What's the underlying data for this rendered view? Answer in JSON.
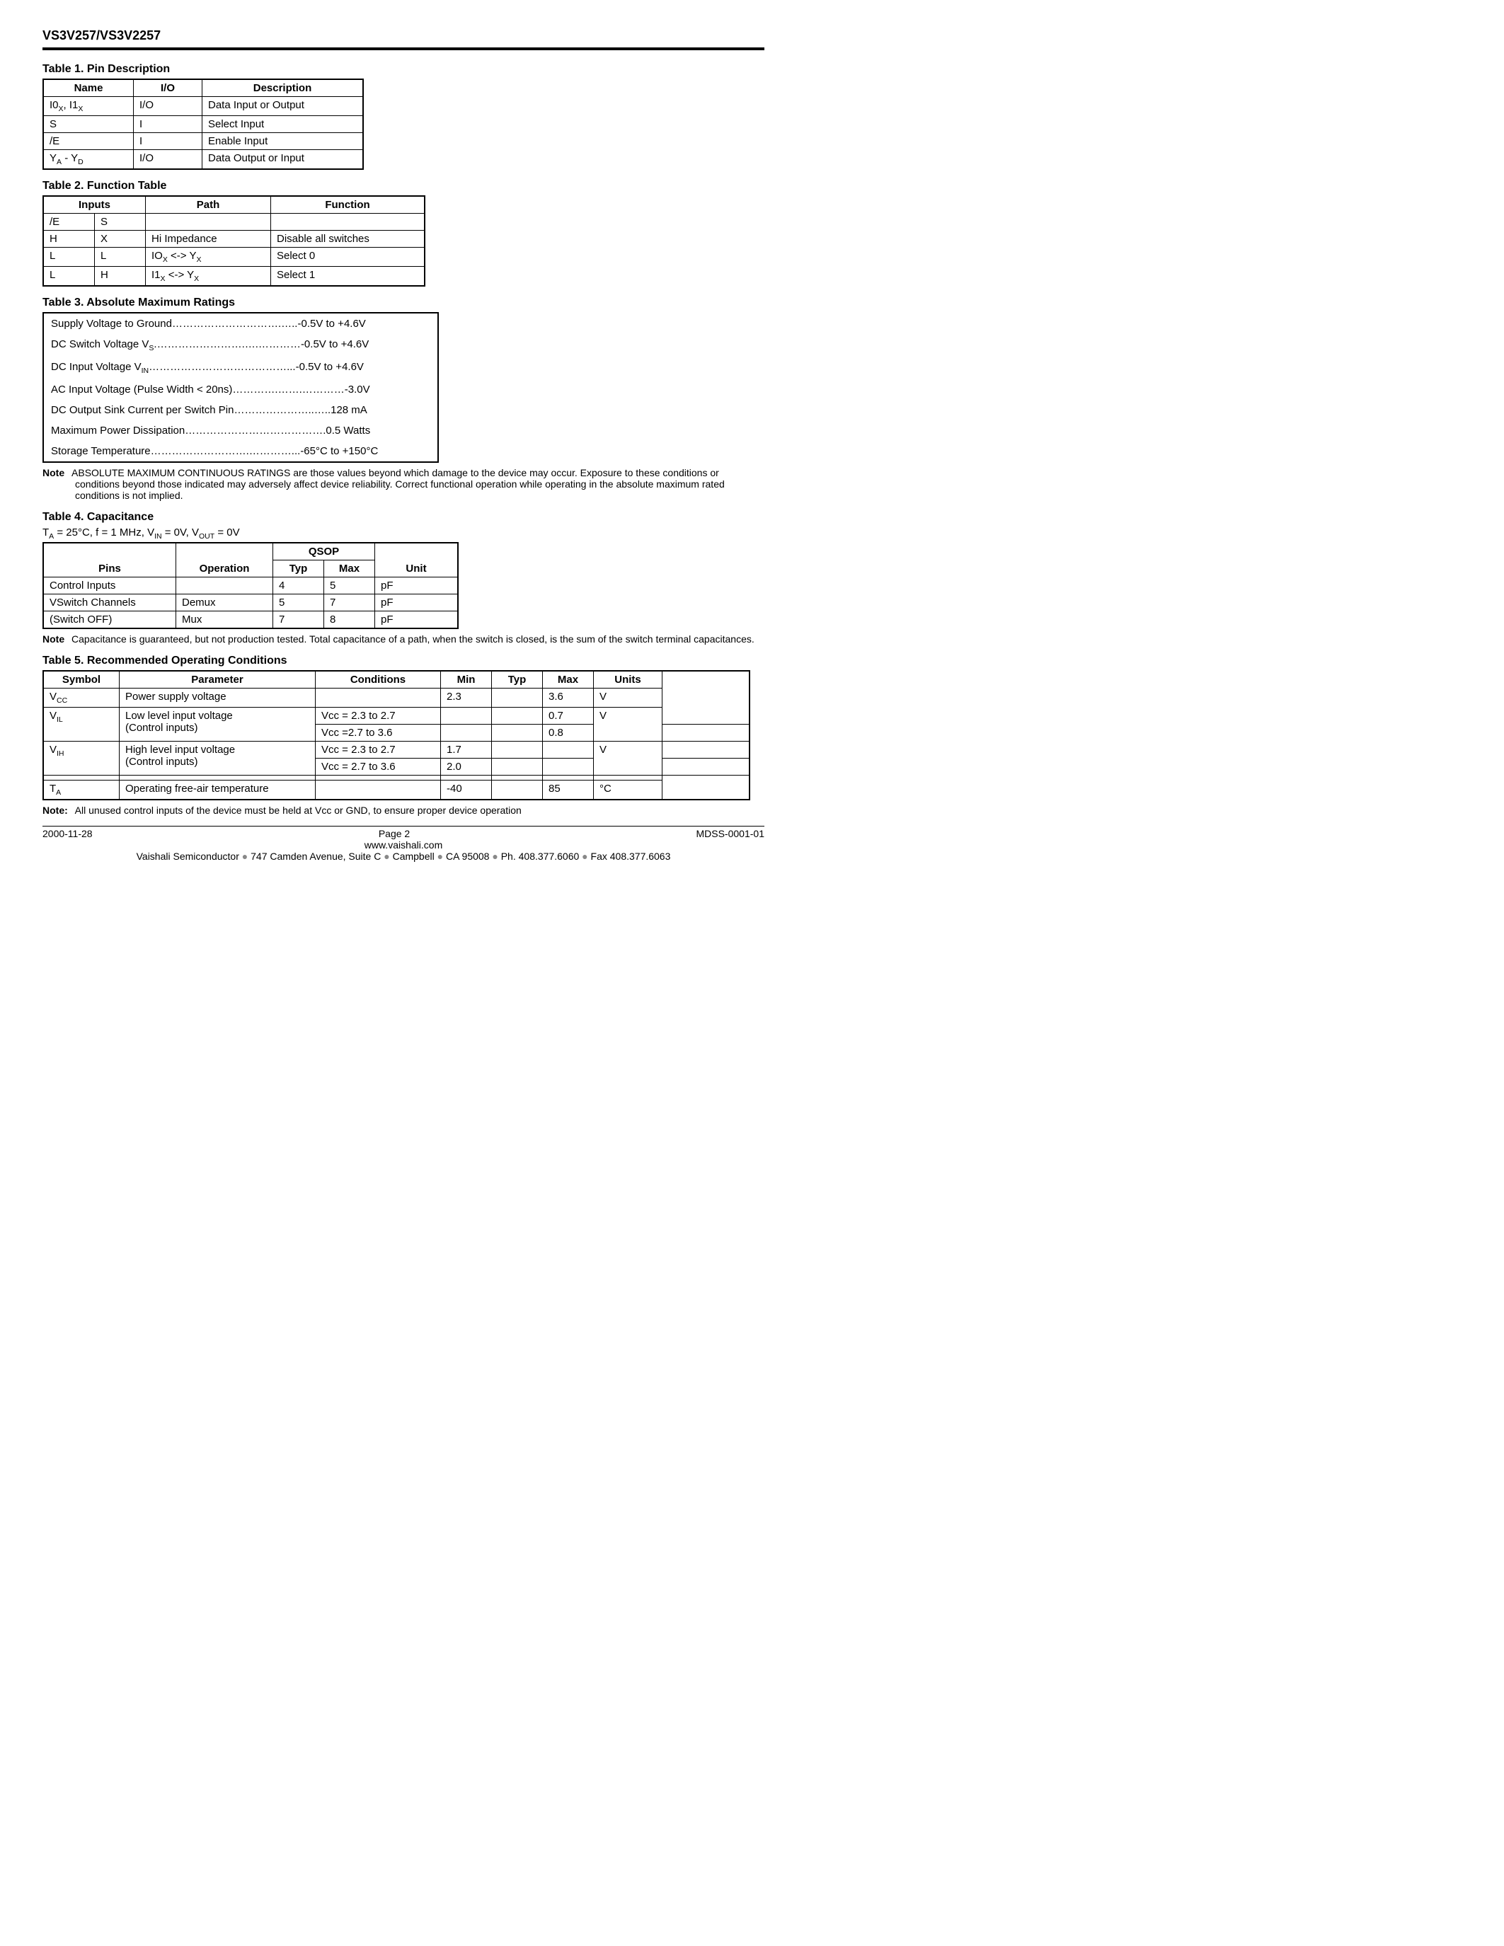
{
  "header": {
    "title": "VS3V257/VS3V2257"
  },
  "table1": {
    "title": "Table 1.  Pin Description",
    "headers": [
      "Name",
      "I/O",
      "Description"
    ],
    "rows": [
      {
        "name_html": "I0<sub>X</sub>, I1<sub>X</sub>",
        "io": "I/O",
        "desc": "Data Input or Output"
      },
      {
        "name_html": "S",
        "io": "I",
        "desc": "Select Input"
      },
      {
        "name_html": "/E",
        "io": "I",
        "desc": "Enable Input"
      },
      {
        "name_html": "Y<sub>A</sub> - Y<sub>D</sub>",
        "io": "I/O",
        "desc": "Data Output or Input"
      }
    ],
    "col_widths": [
      "110px",
      "80px",
      "210px"
    ]
  },
  "table2": {
    "title": "Table 2.  Function Table",
    "headers": {
      "inputs": "Inputs",
      "path": "Path",
      "function": "Function"
    },
    "sub_headers": [
      "/E",
      "S"
    ],
    "rows": [
      {
        "e": "H",
        "s": "X",
        "path_html": "Hi Impedance",
        "func": "Disable all switches"
      },
      {
        "e": "L",
        "s": "L",
        "path_html": "IO<sub>X</sub> &lt;-&gt; Y<sub>X</sub>",
        "func": "Select 0"
      },
      {
        "e": "L",
        "s": "H",
        "path_html": "I1<sub>X</sub> &lt;-&gt; Y<sub>X</sub>",
        "func": "Select 1"
      }
    ],
    "col_widths": [
      "55px",
      "55px",
      "160px",
      "200px"
    ]
  },
  "table3": {
    "title": "Table 3.  Absolute Maximum Ratings",
    "rows": [
      {
        "label_html": "Supply Voltage to Ground",
        "dots": "………………………….…..",
        "value": "-0.5V to +4.6V"
      },
      {
        "label_html": "DC Switch Voltage V<sub>S</sub>.",
        "dots": "…………………….….…………",
        "value": "-0.5V to +4.6V"
      },
      {
        "label_html": "DC Input Voltage V<sub>IN</sub>",
        "dots": "…………………………………...",
        "value": "-0.5V to +4.6V"
      },
      {
        "label_html": "AC Input Voltage (Pulse Width < 20ns)",
        "dots": "………….…….…………",
        "value": "-3.0V"
      },
      {
        "label_html": "DC Output Sink Current per Switch Pin",
        "dots": "…………………..…..",
        "value": "128 mA"
      },
      {
        "label_html": "Maximum Power Dissipation",
        "dots": "………………………………….",
        "value": "0.5 Watts"
      },
      {
        "label_html": "Storage Temperature",
        "dots": "……………………….…………...",
        "value_html": "-65&deg;C to +150&deg;C"
      }
    ],
    "note_label": "Note",
    "note_text": "ABSOLUTE MAXIMUM CONTINUOUS RATINGS are those values beyond which damage to the device may occur. Exposure to these conditions or conditions beyond those indicated may adversely affect device reliability. Correct functional operation while operating in the absolute maximum rated conditions is not implied."
  },
  "table4": {
    "title": "Table 4.  Capacitance",
    "condition_html": "T<sub>A</sub> = 25&deg;C, f = 1 MHz, V<sub>IN</sub> = 0V, V<sub>OUT</sub> = 0V",
    "headers": {
      "pins": "Pins",
      "operation": "Operation",
      "qsop": "QSOP",
      "typ": "Typ",
      "max": "Max",
      "unit": "Unit"
    },
    "rows": [
      {
        "pins": "Control Inputs",
        "op": "",
        "typ": "4",
        "max": "5",
        "unit": "pF"
      },
      {
        "pins": "VSwitch Channels",
        "op": "Demux",
        "typ": "5",
        "max": "7",
        "unit": "pF"
      },
      {
        "pins": "(Switch OFF)",
        "op": "Mux",
        "typ": "7",
        "max": "8",
        "unit": "pF"
      }
    ],
    "col_widths": [
      "170px",
      "120px",
      "55px",
      "55px",
      "100px"
    ],
    "note_label": "Note",
    "note_text": "Capacitance is guaranteed, but not production tested. Total capacitance of a path, when the switch is closed, is the sum of the switch terminal capacitances."
  },
  "table5": {
    "title": "Table 5.  Recommended Operating Conditions",
    "headers": [
      "Symbol",
      "Parameter",
      "Conditions",
      "Min",
      "Typ",
      "Max",
      "Units"
    ],
    "rows": [
      {
        "sym_html": "V<sub>CC</sub>",
        "param": "Power supply voltage",
        "cond": "",
        "min": "2.3",
        "typ": "",
        "max": "3.6",
        "units": "V",
        "rowspan": 1
      },
      {
        "sym_html": "V<sub>IL</sub>",
        "param": "Low level input voltage<br>(Control inputs)",
        "cond": "Vcc = 2.3 to 2.7",
        "min": "",
        "typ": "",
        "max": "0.7",
        "units": "V",
        "rowspan": 2
      },
      {
        "sym_html": "",
        "param": "",
        "cond": "Vcc =2.7 to 3.6",
        "min": "",
        "typ": "",
        "max": "0.8",
        "units": "",
        "sub": true
      },
      {
        "sym_html": "V<sub>IH</sub>",
        "param": "High level input voltage<br>(Control inputs)",
        "cond": "Vcc = 2.3 to 2.7",
        "min": "1.7",
        "typ": "",
        "max": "",
        "units": "V",
        "rowspan": 2
      },
      {
        "sym_html": "",
        "param": "",
        "cond": "Vcc = 2.7 to 3.6",
        "min": "2.0",
        "typ": "",
        "max": "",
        "units": "",
        "sub": true
      },
      {
        "sym_html": "",
        "param": "",
        "cond": "",
        "min": "",
        "typ": "",
        "max": "",
        "units": "",
        "blank": true
      },
      {
        "sym_html": "T<sub>A</sub>",
        "param": "Operating free-air temperature",
        "cond": "",
        "min": "-40",
        "typ": "",
        "max": "85",
        "units_html": "&deg;C"
      }
    ],
    "col_widths": [
      "90px",
      "260px",
      "160px",
      "55px",
      "55px",
      "55px",
      "80px"
    ],
    "note_label": "Note:",
    "note_text": "All unused control inputs of the device must be held at Vcc or GND, to ensure proper device operation"
  },
  "footer": {
    "date": "2000-11-28",
    "page": "Page 2",
    "doc": "MDSS-0001-01",
    "url": "www.vaishali.com",
    "addr": "Vaishali Semiconductor ● 747 Camden Avenue, Suite C ● Campbell ● CA 95008 ● Ph. 408.377.6060 ● Fax 408.377.6063"
  }
}
